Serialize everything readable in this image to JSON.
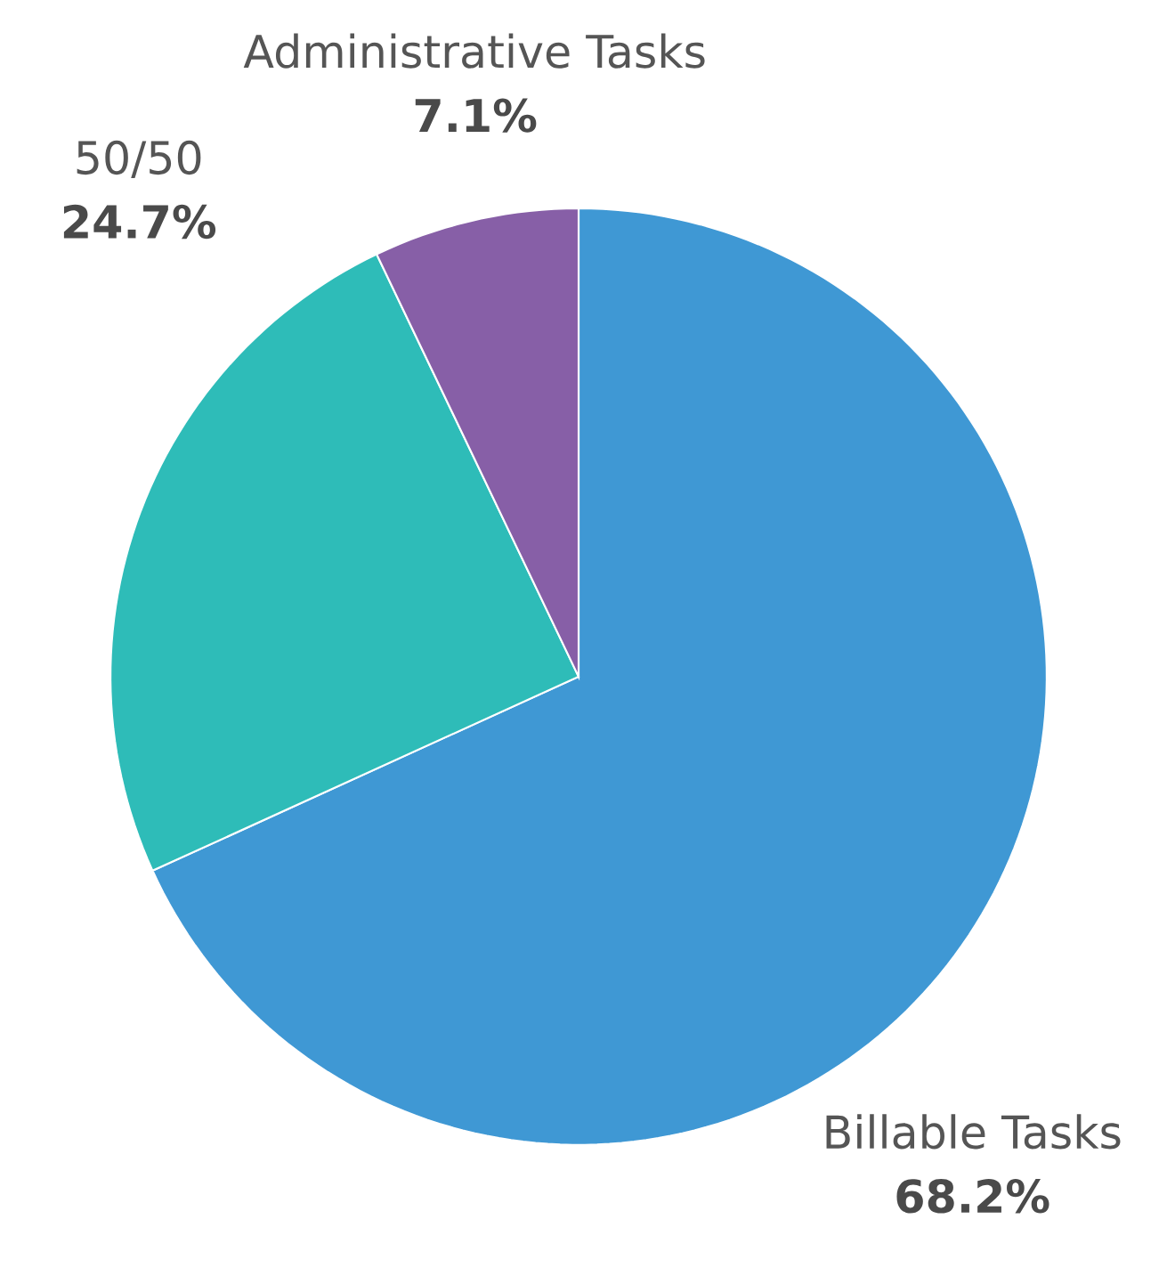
{
  "chart_data": {
    "type": "pie",
    "categories": [
      "Billable Tasks",
      "50/50",
      "Administrative Tasks"
    ],
    "values": [
      68.2,
      24.7,
      7.1
    ],
    "value_labels": [
      "68.2%",
      "24.7%",
      "7.1%"
    ],
    "colors": [
      "#3f98d4",
      "#2ebcb8",
      "#875fa7"
    ]
  }
}
